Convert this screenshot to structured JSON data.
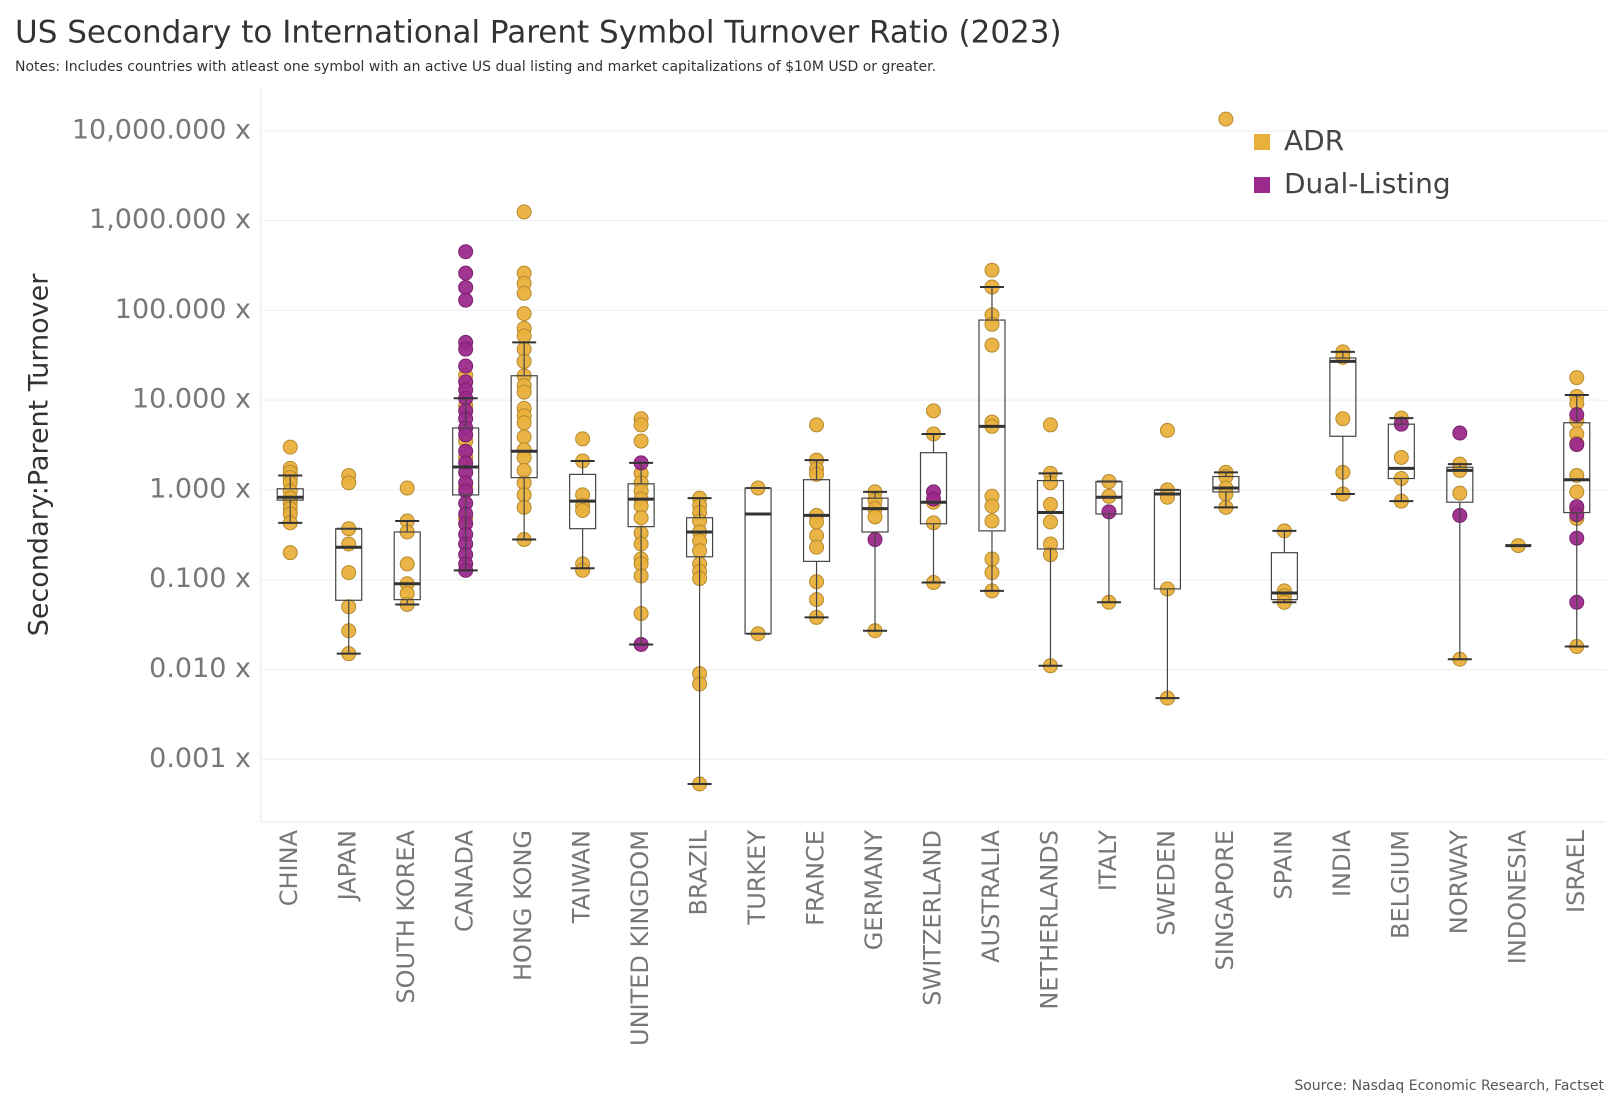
{
  "chart_data": {
    "type": "box",
    "title": "US Secondary to International Parent Symbol Turnover Ratio (2023)",
    "subtitle": "Notes: Includes countries with atleast one symbol with an active US dual listing and market capitalizations of $10M USD or greater.",
    "y_label": "Secondary:Parent Turnover",
    "source": "Source: Nasdaq Economic Research, Factset",
    "log_scale": true,
    "grid": true,
    "legend_position": "top-right",
    "ylim": [
      0.0002,
      30000
    ],
    "yticks": [
      {
        "value": 10000,
        "label": "10,000.000 x"
      },
      {
        "value": 1000,
        "label": "1,000.000 x"
      },
      {
        "value": 100,
        "label": "100.000 x"
      },
      {
        "value": 10,
        "label": "10.000 x"
      },
      {
        "value": 1,
        "label": "1.000 x"
      },
      {
        "value": 0.1,
        "label": "0.100 x"
      },
      {
        "value": 0.01,
        "label": "0.010 x"
      },
      {
        "value": 0.001,
        "label": "0.001 x"
      }
    ],
    "categories": [
      "CHINA",
      "JAPAN",
      "SOUTH KOREA",
      "CANADA",
      "HONG KONG",
      "TAIWAN",
      "UNITED KINGDOM",
      "BRAZIL",
      "TURKEY",
      "FRANCE",
      "GERMANY",
      "SWITZERLAND",
      "AUSTRALIA",
      "NETHERLANDS",
      "ITALY",
      "SWEDEN",
      "SINGAPORE",
      "SPAIN",
      "INDIA",
      "BELGIUM",
      "NORWAY",
      "INDONESIA",
      "ISRAEL"
    ],
    "boxes": [
      {
        "low": 0.43,
        "q1": 0.77,
        "median": 0.83,
        "q3": 1.03,
        "high": 1.45
      },
      {
        "low": 0.015,
        "q1": 0.059,
        "median": 0.23,
        "q3": 0.37,
        "high": 0.37
      },
      {
        "low": 0.053,
        "q1": 0.06,
        "median": 0.09,
        "q3": 0.34,
        "high": 0.45
      },
      {
        "low": 0.127,
        "q1": 0.88,
        "median": 1.8,
        "q3": 4.9,
        "high": 10.5
      },
      {
        "low": 0.28,
        "q1": 1.37,
        "median": 2.7,
        "q3": 18.7,
        "high": 44
      },
      {
        "low": 0.134,
        "q1": 0.37,
        "median": 0.75,
        "q3": 1.49,
        "high": 2.1
      },
      {
        "low": 0.019,
        "q1": 0.39,
        "median": 0.79,
        "q3": 1.17,
        "high": 2.0
      },
      {
        "low": 0.00053,
        "q1": 0.18,
        "median": 0.34,
        "q3": 0.49,
        "high": 0.81
      },
      {
        "low": 0.025,
        "q1": 0.025,
        "median": 0.54,
        "q3": 1.05,
        "high": 1.05
      },
      {
        "low": 0.038,
        "q1": 0.16,
        "median": 0.52,
        "q3": 1.3,
        "high": 2.15
      },
      {
        "low": 0.027,
        "q1": 0.34,
        "median": 0.62,
        "q3": 0.81,
        "high": 0.95
      },
      {
        "low": 0.093,
        "q1": 0.42,
        "median": 0.73,
        "q3": 2.6,
        "high": 4.2
      },
      {
        "low": 0.075,
        "q1": 0.35,
        "median": 5.1,
        "q3": 78,
        "high": 182
      },
      {
        "low": 0.011,
        "q1": 0.22,
        "median": 0.56,
        "q3": 1.27,
        "high": 1.53
      },
      {
        "low": 0.056,
        "q1": 0.54,
        "median": 0.83,
        "q3": 1.24,
        "high": 1.24
      },
      {
        "low": 0.0048,
        "q1": 0.079,
        "median": 0.9,
        "q3": 1.0,
        "high": 1.0
      },
      {
        "low": 0.64,
        "q1": 0.95,
        "median": 1.05,
        "q3": 1.41,
        "high": 1.57
      },
      {
        "low": 0.056,
        "q1": 0.06,
        "median": 0.071,
        "q3": 0.2,
        "high": 0.35
      },
      {
        "low": 0.9,
        "q1": 3.96,
        "median": 27,
        "q3": 29.5,
        "high": 34.5
      },
      {
        "low": 0.75,
        "q1": 1.34,
        "median": 1.74,
        "q3": 5.4,
        "high": 6.3
      },
      {
        "low": 0.013,
        "q1": 0.73,
        "median": 1.65,
        "q3": 1.79,
        "high": 1.94
      },
      {
        "low": 0.24,
        "q1": 0.24,
        "median": 0.24,
        "q3": 0.24,
        "high": 0.24
      },
      {
        "low": 0.018,
        "q1": 0.56,
        "median": 1.3,
        "q3": 5.6,
        "high": 11.4
      }
    ],
    "series": [
      {
        "name": "ADR",
        "color": "#e9b13c",
        "values": [
          [
            3.0,
            1.74,
            1.57,
            1.37,
            1.2,
            0.97,
            0.81,
            0.71,
            0.62,
            0.54,
            0.43,
            0.2
          ],
          [
            1.45,
            1.2,
            0.37,
            0.25,
            0.12,
            0.05,
            0.027,
            0.015
          ],
          [
            1.05,
            0.45,
            0.34,
            0.15,
            0.09,
            0.07,
            0.053
          ],
          [
            19,
            8.7,
            3.5,
            2.3,
            1.05,
            0.48
          ],
          [
            1250,
            260,
            200,
            155,
            92,
            63,
            52,
            37,
            27,
            18.7,
            14.5,
            12.3,
            8.1,
            6.7,
            5.6,
            3.9,
            2.8,
            2.3,
            1.65,
            1.2,
            0.88,
            0.64,
            0.28
          ],
          [
            3.7,
            2.1,
            0.88,
            0.67,
            0.59,
            0.15,
            0.127
          ],
          [
            6.2,
            5.3,
            3.5,
            1.53,
            1.2,
            0.97,
            0.79,
            0.66,
            0.49,
            0.33,
            0.25,
            0.17,
            0.15,
            0.11,
            0.042
          ],
          [
            0.81,
            0.67,
            0.56,
            0.45,
            0.34,
            0.27,
            0.21,
            0.15,
            0.124,
            0.103,
            0.009,
            0.0069,
            0.00053
          ],
          [
            1.05,
            0.025
          ],
          [
            5.3,
            2.15,
            1.7,
            1.49,
            0.52,
            0.44,
            0.31,
            0.23,
            0.095,
            0.06,
            0.038
          ],
          [
            0.95,
            0.77,
            0.62,
            0.5,
            0.027
          ],
          [
            7.6,
            4.2,
            0.73,
            0.43,
            0.093
          ],
          [
            280,
            182,
            89,
            70,
            41,
            5.7,
            5.1,
            0.85,
            0.66,
            0.45,
            0.17,
            0.12,
            0.075
          ],
          [
            5.3,
            1.53,
            1.2,
            0.69,
            0.44,
            0.25,
            0.19,
            0.011
          ],
          [
            1.24,
            0.85,
            0.056
          ],
          [
            4.6,
            1.0,
            0.83,
            0.079,
            0.0048
          ],
          [
            13500,
            1.57,
            1.41,
            1.05,
            0.9,
            0.64
          ],
          [
            0.35,
            0.075,
            0.066,
            0.056
          ],
          [
            34.5,
            30,
            6.2,
            1.57,
            0.9
          ],
          [
            6.3,
            2.3,
            1.34,
            0.75
          ],
          [
            1.94,
            1.65,
            0.92,
            0.013
          ],
          [
            0.24
          ],
          [
            17.8,
            11,
            9.2,
            5.9,
            4.2,
            3.3,
            1.45,
            0.95,
            0.62,
            0.48,
            0.018
          ]
        ]
      },
      {
        "name": "Dual-Listing",
        "color": "#9c2a8c",
        "values": [
          [],
          [],
          [],
          [
            450,
            260,
            180,
            130,
            44,
            37,
            24,
            16,
            13,
            10.5,
            7.6,
            6.2,
            4.9,
            4.1,
            2.7,
            2.0,
            1.57,
            1.2,
            0.97,
            0.71,
            0.54,
            0.42,
            0.32,
            0.25,
            0.19,
            0.15,
            0.127
          ],
          [],
          [],
          [
            2.0,
            0.019
          ],
          [],
          [],
          [],
          [
            0.28
          ],
          [
            0.95,
            0.79
          ],
          [],
          [],
          [
            0.57
          ],
          [],
          [],
          [],
          [],
          [
            5.4
          ],
          [
            4.3,
            0.52
          ],
          [],
          [
            6.9,
            3.2,
            0.65,
            0.53,
            0.29,
            0.056
          ]
        ]
      }
    ]
  }
}
